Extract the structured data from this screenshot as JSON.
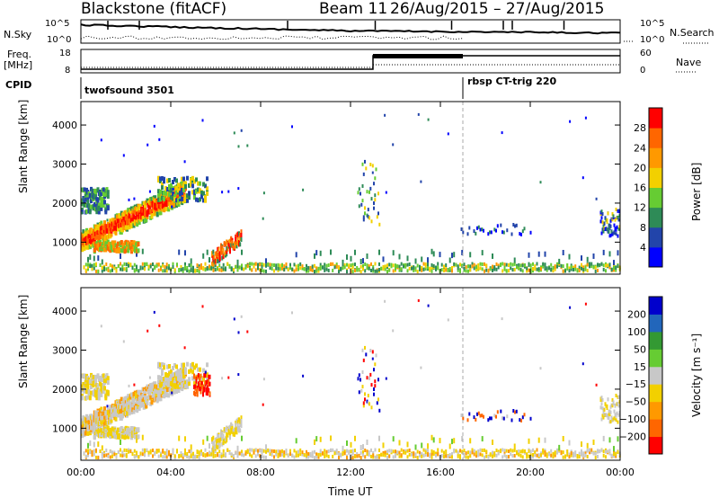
{
  "header": {
    "station": "Blackstone (fitACF)",
    "beam": "Beam 11",
    "date_range": "26/Aug/2015 – 27/Aug/2015"
  },
  "top_panels": {
    "nsky_label": "N.Sky",
    "nsearch_label": "N.Search",
    "nsky_ticks": [
      "10^5",
      "10^0"
    ],
    "nsearch_ticks": [
      "10^5",
      "10^0"
    ],
    "freq_label": "Freq.",
    "freq_unit": "[MHz]",
    "freq_ticks": [
      "18",
      "8"
    ],
    "nave_label": "Nave",
    "nave_ticks": [
      "60",
      "0"
    ],
    "cpid_label": "CPID",
    "cpid_segments": [
      {
        "name": "twofsound 3501",
        "start_hour": 0,
        "end_hour": 17
      },
      {
        "name": "rbsp CT-trig 220",
        "start_hour": 17,
        "end_hour": 24
      }
    ]
  },
  "chart_data": [
    {
      "type": "heatmap",
      "name": "power",
      "xlabel": "",
      "ylabel": "Slant Range [km]",
      "xlim": [
        0,
        24
      ],
      "ylim": [
        180,
        4600
      ],
      "yticks": [
        1000,
        2000,
        3000,
        4000
      ],
      "colorbar": {
        "label": "Power [dB]",
        "ticks": [
          "4",
          "8",
          "12",
          "16",
          "20",
          "24",
          "28"
        ],
        "range": [
          0,
          32
        ],
        "colors": [
          "#0000ff",
          "#2244aa",
          "#2e8b57",
          "#66cc33",
          "#f2d000",
          "#ff9900",
          "#ff6600",
          "#ff0000"
        ]
      },
      "features": [
        {
          "region": "ground scatter band",
          "x": [
            0,
            24
          ],
          "y": [
            200,
            400
          ],
          "power_db": 14
        },
        {
          "region": "morning arc",
          "x": [
            0,
            4.5
          ],
          "y": [
            800,
            2200
          ],
          "power_db": 26
        },
        {
          "region": "echo",
          "x": [
            5.8,
            7.0
          ],
          "y": [
            300,
            900
          ],
          "power_db": 28
        },
        {
          "region": "patch",
          "x": [
            12.4,
            13.2
          ],
          "y": [
            1400,
            3100
          ],
          "power_db": 14
        },
        {
          "region": "patch",
          "x": [
            17.0,
            20.0
          ],
          "y": [
            1100,
            1400
          ],
          "power_db": 6
        },
        {
          "region": "patch",
          "x": [
            23.2,
            24
          ],
          "y": [
            1100,
            1800
          ],
          "power_db": 10
        }
      ]
    },
    {
      "type": "heatmap",
      "name": "velocity",
      "xlabel": "Time UT",
      "ylabel": "Slant Range [km]",
      "xlim": [
        0,
        24
      ],
      "ylim": [
        180,
        4600
      ],
      "xticks": [
        "00:00",
        "04:00",
        "08:00",
        "12:00",
        "16:00",
        "20:00",
        "00:00"
      ],
      "yticks": [
        1000,
        2000,
        3000,
        4000
      ],
      "colorbar": {
        "label": "Velocity [m s⁻¹]",
        "ticks": [
          "200",
          "100",
          "50",
          "15",
          "−15",
          "−50",
          "−100",
          "−200"
        ],
        "colors": [
          "#0000cc",
          "#2266bb",
          "#339933",
          "#66cc33",
          "#c8c8c8",
          "#f2d000",
          "#ff9900",
          "#ff6600",
          "#ff0000"
        ]
      },
      "features": [
        {
          "region": "ground scatter band",
          "x": [
            0,
            24
          ],
          "y": [
            200,
            400
          ],
          "velocity": -30
        },
        {
          "region": "morning arc",
          "x": [
            0,
            4.5
          ],
          "y": [
            800,
            2200
          ],
          "velocity": 0
        },
        {
          "region": "echo",
          "x": [
            5.0,
            5.7
          ],
          "y": [
            1800,
            2300
          ],
          "velocity": -200
        },
        {
          "region": "patch",
          "x": [
            23.2,
            24
          ],
          "y": [
            1100,
            1800
          ],
          "velocity": 0
        }
      ]
    }
  ]
}
